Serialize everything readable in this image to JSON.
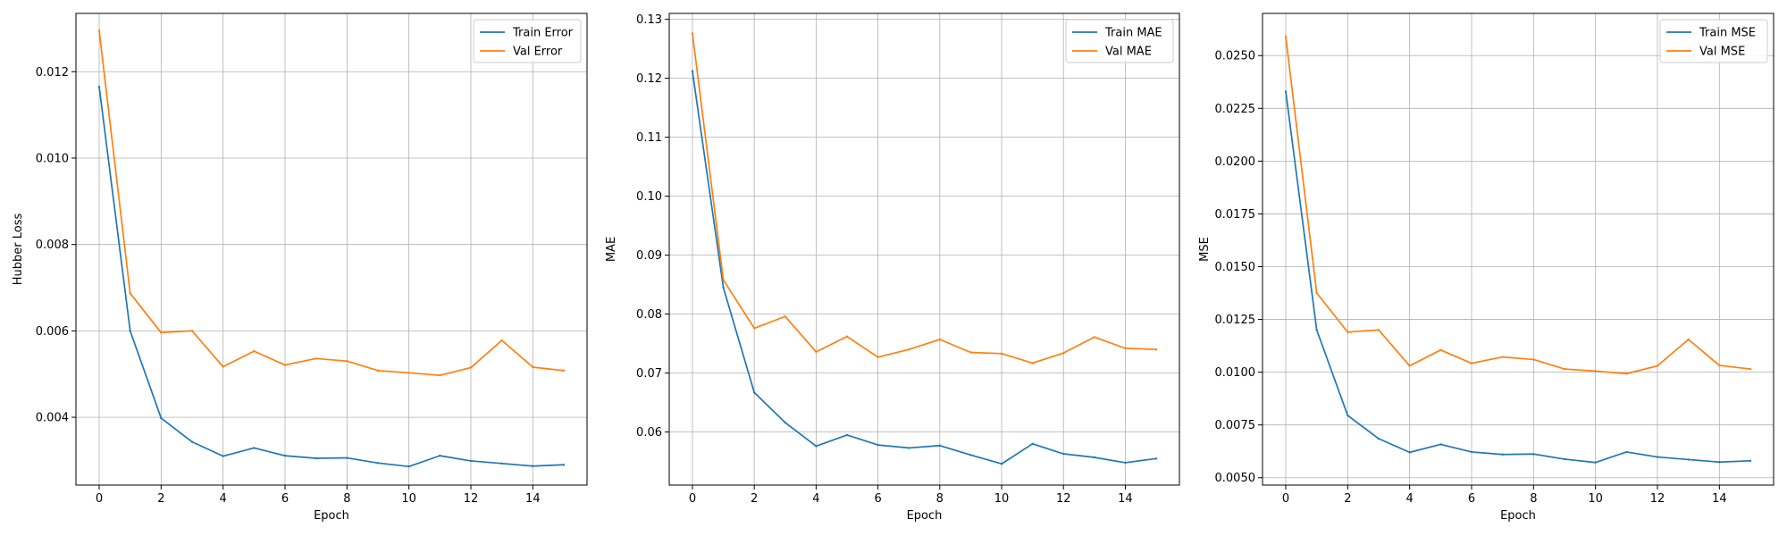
{
  "chart_data": [
    {
      "type": "line",
      "xlabel": "Epoch",
      "ylabel": "Hubber Loss",
      "xlim": [
        -0.75,
        15.75
      ],
      "ylim": [
        0.00243,
        0.01335
      ],
      "xticks": [
        0,
        2,
        4,
        6,
        8,
        10,
        12,
        14
      ],
      "yticks": [
        0.004,
        0.006,
        0.008,
        0.01,
        0.012
      ],
      "ytick_labels": [
        "0.004",
        "0.006",
        "0.008",
        "0.010",
        "0.012"
      ],
      "grid": true,
      "legend_position": "top-right",
      "x": [
        0,
        1,
        2,
        3,
        4,
        5,
        6,
        7,
        8,
        9,
        10,
        11,
        12,
        13,
        14,
        15
      ],
      "series": [
        {
          "name": "Train Error",
          "color": "#1f77b4",
          "values": [
            0.01165,
            0.006,
            0.00398,
            0.00343,
            0.0031,
            0.00329,
            0.00311,
            0.00305,
            0.00306,
            0.00294,
            0.00286,
            0.00311,
            0.00299,
            0.00293,
            0.00287,
            0.0029
          ]
        },
        {
          "name": "Val Error",
          "color": "#ff7f0e",
          "values": [
            0.01295,
            0.00687,
            0.00596,
            0.006,
            0.00517,
            0.00553,
            0.00521,
            0.00536,
            0.0053,
            0.00508,
            0.00503,
            0.00497,
            0.00515,
            0.00578,
            0.00516,
            0.00508
          ]
        }
      ]
    },
    {
      "type": "line",
      "xlabel": "Epoch",
      "ylabel": "MAE",
      "xlim": [
        -0.75,
        15.75
      ],
      "ylim": [
        0.051,
        0.131
      ],
      "xticks": [
        0,
        2,
        4,
        6,
        8,
        10,
        12,
        14
      ],
      "yticks": [
        0.06,
        0.07,
        0.08,
        0.09,
        0.1,
        0.11,
        0.12,
        0.13
      ],
      "ytick_labels": [
        "0.06",
        "0.07",
        "0.08",
        "0.09",
        "0.10",
        "0.11",
        "0.12",
        "0.13"
      ],
      "grid": true,
      "legend_position": "top-right",
      "x": [
        0,
        1,
        2,
        3,
        4,
        5,
        6,
        7,
        8,
        9,
        10,
        11,
        12,
        13,
        14,
        15
      ],
      "series": [
        {
          "name": "Train MAE",
          "color": "#1f77b4",
          "values": [
            0.1212,
            0.0845,
            0.0667,
            0.0616,
            0.0576,
            0.0595,
            0.0578,
            0.0573,
            0.0577,
            0.0561,
            0.0546,
            0.058,
            0.0563,
            0.0557,
            0.0548,
            0.0555
          ]
        },
        {
          "name": "Val MAE",
          "color": "#ff7f0e",
          "values": [
            0.1276,
            0.0858,
            0.0776,
            0.0796,
            0.0736,
            0.0762,
            0.0727,
            0.074,
            0.0757,
            0.0735,
            0.0733,
            0.0717,
            0.0734,
            0.0761,
            0.0742,
            0.074
          ]
        }
      ]
    },
    {
      "type": "line",
      "xlabel": "Epoch",
      "ylabel": "MSE",
      "xlim": [
        -0.75,
        15.75
      ],
      "ylim": [
        0.00465,
        0.027
      ],
      "xticks": [
        0,
        2,
        4,
        6,
        8,
        10,
        12,
        14
      ],
      "yticks": [
        0.005,
        0.0075,
        0.01,
        0.0125,
        0.015,
        0.0175,
        0.02,
        0.0225,
        0.025
      ],
      "ytick_labels": [
        "0.0050",
        "0.0075",
        "0.0100",
        "0.0125",
        "0.0150",
        "0.0175",
        "0.0200",
        "0.0225",
        "0.0250"
      ],
      "grid": true,
      "legend_position": "top-right",
      "x": [
        0,
        1,
        2,
        3,
        4,
        5,
        6,
        7,
        8,
        9,
        10,
        11,
        12,
        13,
        14,
        15
      ],
      "series": [
        {
          "name": "Train MSE",
          "color": "#1f77b4",
          "values": [
            0.0233,
            0.012,
            0.00795,
            0.00685,
            0.0062,
            0.00658,
            0.00622,
            0.0061,
            0.00612,
            0.00588,
            0.00572,
            0.00622,
            0.00598,
            0.00586,
            0.00574,
            0.0058
          ]
        },
        {
          "name": "Val MSE",
          "color": "#ff7f0e",
          "values": [
            0.0259,
            0.01375,
            0.0119,
            0.012,
            0.0103,
            0.01105,
            0.01042,
            0.01072,
            0.0106,
            0.01015,
            0.01005,
            0.00993,
            0.0103,
            0.01155,
            0.01032,
            0.01015
          ]
        }
      ]
    }
  ]
}
